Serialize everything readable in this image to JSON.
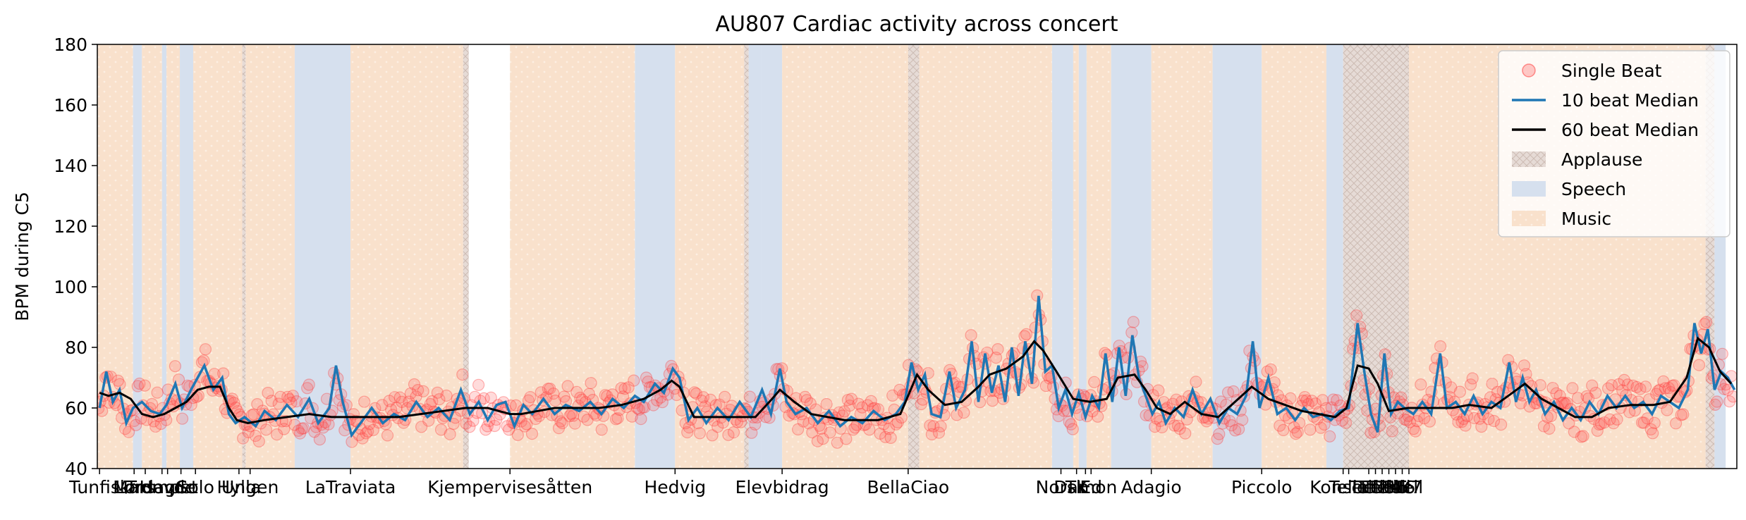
{
  "chart_data": {
    "type": "scatter",
    "title": "AU807 Cardiac activity across concert",
    "xlabel": "",
    "ylabel": "BPM during C5",
    "xlim": [
      0,
      1470
    ],
    "ylim": [
      40,
      180
    ],
    "yticks": [
      40,
      60,
      80,
      100,
      120,
      140,
      160,
      180
    ],
    "xticks": [
      {
        "x": 2,
        "label": "Tunfisk"
      },
      {
        "x": 33,
        "label": "Mars"
      },
      {
        "x": 43,
        "label": "Lørdag"
      },
      {
        "x": 58,
        "label": "Trompet"
      },
      {
        "x": 63,
        "label": "Hevde"
      },
      {
        "x": 75,
        "label": "C"
      },
      {
        "x": 88,
        "label": "Solo"
      },
      {
        "x": 127,
        "label": "Hylla"
      },
      {
        "x": 137,
        "label": "Ungen"
      },
      {
        "x": 227,
        "label": "LaTraviata"
      },
      {
        "x": 370,
        "label": "Kjempervisesåtten"
      },
      {
        "x": 518,
        "label": "Hedvig"
      },
      {
        "x": 614,
        "label": "Elevbidrag"
      },
      {
        "x": 727,
        "label": "BellaCiao"
      },
      {
        "x": 864,
        "label": "Norsk"
      },
      {
        "x": 878,
        "label": "TK"
      },
      {
        "x": 886,
        "label": "Damon"
      },
      {
        "x": 891,
        "label": "Ed"
      },
      {
        "x": 945,
        "label": "Adagio"
      },
      {
        "x": 1044,
        "label": "Piccolo"
      },
      {
        "x": 1117,
        "label": "Konsert"
      },
      {
        "x": 1122,
        "label": "Tell1"
      },
      {
        "x": 1140,
        "label": "Tell2"
      },
      {
        "x": 1146,
        "label": "Tell3"
      },
      {
        "x": 1152,
        "label": "Tell4"
      },
      {
        "x": 1158,
        "label": "Tell5"
      },
      {
        "x": 1164,
        "label": "Tell6"
      },
      {
        "x": 1170,
        "label": "Tell7"
      },
      {
        "x": 1176,
        "label": "Tell"
      }
    ],
    "tick_label_texts": [
      "Tunfisk",
      "Mars",
      "Lørdag",
      "Trompet",
      "Hevde",
      "C",
      "Solo",
      "Hylla",
      "Ungen",
      "LaTraviata",
      "Kjempervisesåtten",
      "Hedvig",
      "Elevbidrag",
      "BellaCiao",
      "Norsk",
      "TK",
      "Damon",
      "Ed",
      "Adagio",
      "Piccolo",
      "Konsert",
      "Tell1",
      "Tell2",
      "Tell3",
      "Tell4",
      "Tell5",
      "Tell6",
      "Tell7",
      "Tell"
    ],
    "legend": {
      "position": "top-right",
      "entries": [
        {
          "label": "Single Beat",
          "kind": "marker",
          "color": "#ff6b6b"
        },
        {
          "label": "10 beat Median",
          "kind": "line",
          "color": "#1f77b4"
        },
        {
          "label": "60 beat Median",
          "kind": "line",
          "color": "#000000"
        },
        {
          "label": "Applause",
          "kind": "patch",
          "color": "#c8b0a8"
        },
        {
          "label": "Speech",
          "kind": "patch",
          "color": "#b0c4de"
        },
        {
          "label": "Music",
          "kind": "patch",
          "color": "#f5cba7"
        }
      ]
    },
    "regions": [
      {
        "type": "Music",
        "start": 0,
        "end": 32
      },
      {
        "type": "Speech",
        "start": 32,
        "end": 40
      },
      {
        "type": "Music",
        "start": 40,
        "end": 58
      },
      {
        "type": "Speech",
        "start": 58,
        "end": 62
      },
      {
        "type": "Music",
        "start": 62,
        "end": 74
      },
      {
        "type": "Speech",
        "start": 74,
        "end": 86
      },
      {
        "type": "Music",
        "start": 86,
        "end": 130
      },
      {
        "type": "Applause",
        "start": 130,
        "end": 133
      },
      {
        "type": "Music",
        "start": 133,
        "end": 177
      },
      {
        "type": "Speech",
        "start": 177,
        "end": 227
      },
      {
        "type": "Music",
        "start": 227,
        "end": 328
      },
      {
        "type": "Applause",
        "start": 328,
        "end": 333
      },
      {
        "type": "Music",
        "start": 370,
        "end": 482
      },
      {
        "type": "Speech",
        "start": 482,
        "end": 518
      },
      {
        "type": "Music",
        "start": 518,
        "end": 580
      },
      {
        "type": "Applause",
        "start": 580,
        "end": 584
      },
      {
        "type": "Speech",
        "start": 584,
        "end": 595
      },
      {
        "type": "Speech",
        "start": 595,
        "end": 614
      },
      {
        "type": "Music",
        "start": 614,
        "end": 727
      },
      {
        "type": "Applause",
        "start": 727,
        "end": 737
      },
      {
        "type": "Music",
        "start": 737,
        "end": 856
      },
      {
        "type": "Speech",
        "start": 856,
        "end": 875
      },
      {
        "type": "Music",
        "start": 875,
        "end": 880
      },
      {
        "type": "Speech",
        "start": 880,
        "end": 887
      },
      {
        "type": "Music",
        "start": 887,
        "end": 909
      },
      {
        "type": "Speech",
        "start": 909,
        "end": 945
      },
      {
        "type": "Music",
        "start": 945,
        "end": 1000
      },
      {
        "type": "Speech",
        "start": 1000,
        "end": 1044
      },
      {
        "type": "Music",
        "start": 1044,
        "end": 1102
      },
      {
        "type": "Speech",
        "start": 1102,
        "end": 1117
      },
      {
        "type": "Applause",
        "start": 1117,
        "end": 1176
      },
      {
        "type": "Music",
        "start": 1176,
        "end": 1442
      },
      {
        "type": "Applause",
        "start": 1442,
        "end": 1450
      },
      {
        "type": "Speech",
        "start": 1450,
        "end": 1460
      }
    ],
    "median60": [
      [
        2,
        65
      ],
      [
        10,
        64
      ],
      [
        20,
        65
      ],
      [
        30,
        63
      ],
      [
        40,
        58
      ],
      [
        50,
        57
      ],
      [
        60,
        58
      ],
      [
        70,
        60
      ],
      [
        80,
        62
      ],
      [
        90,
        66
      ],
      [
        100,
        67
      ],
      [
        110,
        67
      ],
      [
        118,
        60
      ],
      [
        125,
        56
      ],
      [
        135,
        55
      ],
      [
        150,
        56
      ],
      [
        170,
        57
      ],
      [
        190,
        58
      ],
      [
        210,
        57
      ],
      [
        230,
        57
      ],
      [
        250,
        57
      ],
      [
        270,
        57
      ],
      [
        290,
        58
      ],
      [
        310,
        59
      ],
      [
        330,
        60
      ],
      [
        350,
        60
      ],
      [
        370,
        58
      ],
      [
        380,
        58
      ],
      [
        395,
        59
      ],
      [
        410,
        60
      ],
      [
        430,
        60
      ],
      [
        450,
        60
      ],
      [
        470,
        61
      ],
      [
        490,
        63
      ],
      [
        505,
        66
      ],
      [
        515,
        69
      ],
      [
        522,
        67
      ],
      [
        535,
        57
      ],
      [
        560,
        57
      ],
      [
        590,
        57
      ],
      [
        605,
        63
      ],
      [
        612,
        66
      ],
      [
        625,
        62
      ],
      [
        640,
        58
      ],
      [
        670,
        56
      ],
      [
        700,
        56
      ],
      [
        720,
        58
      ],
      [
        735,
        71
      ],
      [
        745,
        66
      ],
      [
        760,
        61
      ],
      [
        775,
        62
      ],
      [
        790,
        67
      ],
      [
        800,
        71
      ],
      [
        815,
        73
      ],
      [
        830,
        77
      ],
      [
        840,
        82
      ],
      [
        848,
        79
      ],
      [
        860,
        72
      ],
      [
        875,
        63
      ],
      [
        890,
        62
      ],
      [
        905,
        63
      ],
      [
        915,
        70
      ],
      [
        930,
        71
      ],
      [
        940,
        66
      ],
      [
        950,
        60
      ],
      [
        962,
        58
      ],
      [
        975,
        62
      ],
      [
        990,
        58
      ],
      [
        1005,
        57
      ],
      [
        1020,
        62
      ],
      [
        1035,
        67
      ],
      [
        1050,
        63
      ],
      [
        1065,
        61
      ],
      [
        1080,
        59
      ],
      [
        1095,
        58
      ],
      [
        1110,
        57
      ],
      [
        1120,
        60
      ],
      [
        1130,
        74
      ],
      [
        1140,
        73
      ],
      [
        1148,
        68
      ],
      [
        1158,
        59
      ],
      [
        1175,
        60
      ],
      [
        1195,
        60
      ],
      [
        1215,
        60
      ],
      [
        1230,
        61
      ],
      [
        1250,
        60
      ],
      [
        1265,
        64
      ],
      [
        1280,
        68
      ],
      [
        1295,
        63
      ],
      [
        1310,
        60
      ],
      [
        1325,
        57
      ],
      [
        1340,
        57
      ],
      [
        1355,
        60
      ],
      [
        1375,
        61
      ],
      [
        1395,
        61
      ],
      [
        1410,
        62
      ],
      [
        1425,
        70
      ],
      [
        1435,
        83
      ],
      [
        1445,
        80
      ],
      [
        1455,
        72
      ],
      [
        1465,
        68
      ]
    ],
    "median10": [
      [
        2,
        60
      ],
      [
        8,
        72
      ],
      [
        14,
        62
      ],
      [
        20,
        66
      ],
      [
        26,
        55
      ],
      [
        32,
        60
      ],
      [
        40,
        62
      ],
      [
        48,
        59
      ],
      [
        56,
        58
      ],
      [
        62,
        61
      ],
      [
        70,
        68
      ],
      [
        76,
        60
      ],
      [
        84,
        66
      ],
      [
        90,
        70
      ],
      [
        96,
        74
      ],
      [
        104,
        66
      ],
      [
        112,
        70
      ],
      [
        118,
        58
      ],
      [
        124,
        55
      ],
      [
        132,
        57
      ],
      [
        142,
        54
      ],
      [
        150,
        59
      ],
      [
        160,
        56
      ],
      [
        170,
        61
      ],
      [
        180,
        57
      ],
      [
        190,
        63
      ],
      [
        198,
        55
      ],
      [
        208,
        60
      ],
      [
        214,
        74
      ],
      [
        220,
        62
      ],
      [
        228,
        51
      ],
      [
        236,
        55
      ],
      [
        246,
        60
      ],
      [
        256,
        55
      ],
      [
        266,
        58
      ],
      [
        276,
        56
      ],
      [
        286,
        62
      ],
      [
        296,
        57
      ],
      [
        306,
        60
      ],
      [
        316,
        56
      ],
      [
        326,
        66
      ],
      [
        334,
        58
      ],
      [
        342,
        62
      ],
      [
        350,
        56
      ],
      [
        358,
        61
      ],
      [
        366,
        62
      ],
      [
        374,
        54
      ],
      [
        382,
        61
      ],
      [
        390,
        58
      ],
      [
        400,
        63
      ],
      [
        410,
        58
      ],
      [
        420,
        61
      ],
      [
        432,
        59
      ],
      [
        442,
        62
      ],
      [
        452,
        58
      ],
      [
        462,
        63
      ],
      [
        472,
        60
      ],
      [
        482,
        64
      ],
      [
        490,
        62
      ],
      [
        500,
        68
      ],
      [
        508,
        65
      ],
      [
        516,
        73
      ],
      [
        522,
        70
      ],
      [
        530,
        56
      ],
      [
        538,
        60
      ],
      [
        546,
        55
      ],
      [
        556,
        60
      ],
      [
        566,
        56
      ],
      [
        576,
        62
      ],
      [
        586,
        57
      ],
      [
        596,
        66
      ],
      [
        604,
        58
      ],
      [
        612,
        73
      ],
      [
        618,
        62
      ],
      [
        626,
        58
      ],
      [
        636,
        60
      ],
      [
        646,
        55
      ],
      [
        656,
        59
      ],
      [
        666,
        54
      ],
      [
        676,
        57
      ],
      [
        686,
        55
      ],
      [
        696,
        59
      ],
      [
        706,
        56
      ],
      [
        716,
        58
      ],
      [
        724,
        62
      ],
      [
        730,
        75
      ],
      [
        736,
        66
      ],
      [
        742,
        71
      ],
      [
        748,
        58
      ],
      [
        756,
        57
      ],
      [
        764,
        72
      ],
      [
        770,
        60
      ],
      [
        778,
        66
      ],
      [
        784,
        82
      ],
      [
        790,
        62
      ],
      [
        796,
        78
      ],
      [
        802,
        65
      ],
      [
        808,
        74
      ],
      [
        814,
        62
      ],
      [
        820,
        80
      ],
      [
        826,
        64
      ],
      [
        832,
        82
      ],
      [
        838,
        68
      ],
      [
        844,
        97
      ],
      [
        850,
        72
      ],
      [
        856,
        74
      ],
      [
        862,
        60
      ],
      [
        868,
        66
      ],
      [
        874,
        58
      ],
      [
        880,
        65
      ],
      [
        886,
        57
      ],
      [
        892,
        64
      ],
      [
        898,
        60
      ],
      [
        904,
        78
      ],
      [
        910,
        62
      ],
      [
        916,
        80
      ],
      [
        922,
        64
      ],
      [
        928,
        84
      ],
      [
        934,
        70
      ],
      [
        940,
        64
      ],
      [
        946,
        58
      ],
      [
        952,
        62
      ],
      [
        958,
        55
      ],
      [
        966,
        60
      ],
      [
        974,
        57
      ],
      [
        982,
        66
      ],
      [
        990,
        58
      ],
      [
        998,
        63
      ],
      [
        1006,
        55
      ],
      [
        1014,
        60
      ],
      [
        1022,
        58
      ],
      [
        1030,
        64
      ],
      [
        1036,
        82
      ],
      [
        1042,
        60
      ],
      [
        1050,
        70
      ],
      [
        1058,
        58
      ],
      [
        1066,
        60
      ],
      [
        1074,
        56
      ],
      [
        1082,
        60
      ],
      [
        1090,
        57
      ],
      [
        1098,
        58
      ],
      [
        1106,
        56
      ],
      [
        1114,
        59
      ],
      [
        1122,
        60
      ],
      [
        1130,
        88
      ],
      [
        1136,
        72
      ],
      [
        1142,
        58
      ],
      [
        1148,
        52
      ],
      [
        1154,
        78
      ],
      [
        1160,
        58
      ],
      [
        1166,
        62
      ],
      [
        1172,
        60
      ],
      [
        1180,
        58
      ],
      [
        1188,
        62
      ],
      [
        1196,
        58
      ],
      [
        1204,
        78
      ],
      [
        1210,
        60
      ],
      [
        1218,
        62
      ],
      [
        1226,
        58
      ],
      [
        1234,
        64
      ],
      [
        1242,
        58
      ],
      [
        1250,
        62
      ],
      [
        1258,
        60
      ],
      [
        1266,
        75
      ],
      [
        1272,
        62
      ],
      [
        1278,
        70
      ],
      [
        1284,
        62
      ],
      [
        1290,
        66
      ],
      [
        1298,
        58
      ],
      [
        1306,
        62
      ],
      [
        1314,
        56
      ],
      [
        1322,
        60
      ],
      [
        1330,
        56
      ],
      [
        1338,
        62
      ],
      [
        1346,
        58
      ],
      [
        1354,
        64
      ],
      [
        1362,
        60
      ],
      [
        1370,
        64
      ],
      [
        1378,
        60
      ],
      [
        1386,
        62
      ],
      [
        1394,
        58
      ],
      [
        1402,
        64
      ],
      [
        1410,
        62
      ],
      [
        1418,
        60
      ],
      [
        1426,
        66
      ],
      [
        1432,
        88
      ],
      [
        1438,
        78
      ],
      [
        1444,
        86
      ],
      [
        1450,
        66
      ],
      [
        1456,
        72
      ],
      [
        1462,
        70
      ],
      [
        1468,
        66
      ]
    ]
  }
}
